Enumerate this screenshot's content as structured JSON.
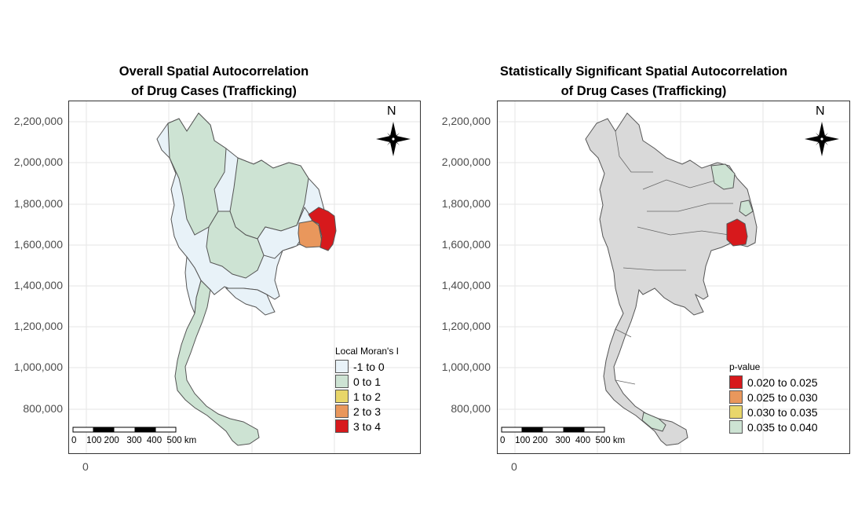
{
  "left_panel": {
    "title_line1": "Overall Spatial Autocorrelation",
    "title_line2": "of Drug Cases (Trafficking)",
    "legend_title": "Local Moran's I",
    "legend": [
      {
        "label": "-1 to 0",
        "color": "#e8f2f8"
      },
      {
        "label": "0 to 1",
        "color": "#cde3d3"
      },
      {
        "label": "1 to 2",
        "color": "#e8d66a"
      },
      {
        "label": "2 to 3",
        "color": "#e9975c"
      },
      {
        "label": "3 to 4",
        "color": "#d7191c"
      }
    ]
  },
  "right_panel": {
    "title_line1": "Statistically Significant Spatial Autocorrelation",
    "title_line2": "of Drug Cases (Trafficking)",
    "legend_title": "p-value",
    "legend": [
      {
        "label": "0.020 to 0.025",
        "color": "#d7191c"
      },
      {
        "label": "0.025 to 0.030",
        "color": "#e9975c"
      },
      {
        "label": "0.030 to 0.035",
        "color": "#e8d66a"
      },
      {
        "label": "0.035 to 0.040",
        "color": "#cde3d3"
      }
    ],
    "base_color": "#d9d9d9"
  },
  "y_ticks": [
    "2,200,000",
    "2,000,000",
    "1,800,000",
    "1,600,000",
    "1,400,000",
    "1,200,000",
    "1,000,000",
    "800,000"
  ],
  "x_tick": "0",
  "north_label": "N",
  "scale_bar_labels": "0    100 200   300  400  500 km"
}
